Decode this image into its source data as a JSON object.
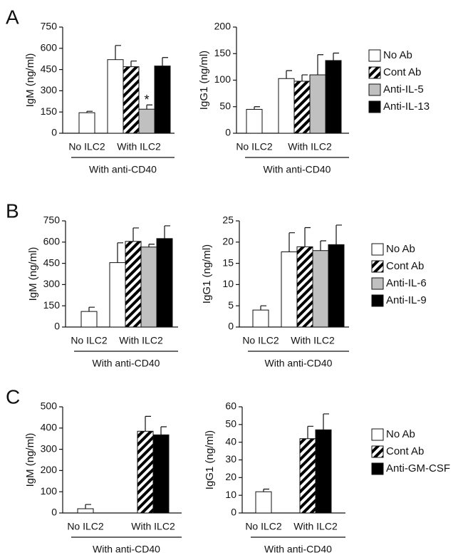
{
  "chart_data": [
    {
      "type": "bar",
      "panel": "A",
      "ylabel": "IgM (ng/ml)",
      "xlabel": "With anti-CD40",
      "categories": [
        "No ILC2",
        "With ILC2"
      ],
      "ylim": [
        0,
        750
      ],
      "yticks": [
        0,
        150,
        300,
        450,
        600,
        750
      ],
      "series": [
        {
          "color": "#ffffff",
          "values": [
            145,
            520
          ],
          "errors": [
            10,
            100
          ]
        },
        {
          "color": "#000000",
          "hatch": true,
          "values": [
            null,
            470
          ],
          "errors": [
            null,
            40
          ]
        },
        {
          "color": "#c0c0c0",
          "values": [
            null,
            170
          ],
          "errors": [
            null,
            30
          ],
          "annotations": [
            null,
            "*"
          ]
        },
        {
          "color": "#000000",
          "values": [
            null,
            475
          ],
          "errors": [
            null,
            60
          ]
        }
      ]
    },
    {
      "type": "bar",
      "ylabel": "IgG1 (ng/ml)",
      "xlabel": "With anti-CD40",
      "categories": [
        "No ILC2",
        "With ILC2"
      ],
      "ylim": [
        0,
        200
      ],
      "yticks": [
        0,
        50,
        100,
        150,
        200
      ],
      "series": [
        {
          "name": "No Ab",
          "color": "#ffffff",
          "values": [
            45,
            103
          ],
          "errors": [
            5,
            15
          ]
        },
        {
          "name": "Cont Ab",
          "color": "#000000",
          "hatch": true,
          "values": [
            null,
            98
          ],
          "errors": [
            null,
            12
          ]
        },
        {
          "name": "Anti-IL-5",
          "color": "#c0c0c0",
          "values": [
            null,
            110
          ],
          "errors": [
            null,
            38
          ]
        },
        {
          "name": "Anti-IL-13",
          "color": "#000000",
          "values": [
            null,
            137
          ],
          "errors": [
            null,
            14
          ]
        }
      ]
    },
    {
      "type": "bar",
      "panel": "B",
      "ylabel": "IgM (ng/ml)",
      "xlabel": "With anti-CD40",
      "categories": [
        "No ILC2",
        "With ILC2"
      ],
      "ylim": [
        0,
        750
      ],
      "yticks": [
        0,
        150,
        300,
        450,
        600,
        750
      ],
      "series": [
        {
          "color": "#ffffff",
          "values": [
            110,
            455
          ],
          "errors": [
            30,
            140
          ]
        },
        {
          "color": "#000000",
          "hatch": true,
          "values": [
            null,
            605
          ],
          "errors": [
            null,
            95
          ]
        },
        {
          "color": "#c0c0c0",
          "values": [
            null,
            565
          ],
          "errors": [
            null,
            20
          ]
        },
        {
          "color": "#000000",
          "values": [
            null,
            625
          ],
          "errors": [
            null,
            90
          ]
        }
      ]
    },
    {
      "type": "bar",
      "ylabel": "IgG1 (ng/ml)",
      "xlabel": "With anti-CD40",
      "categories": [
        "No ILC2",
        "With ILC2"
      ],
      "ylim": [
        0,
        25
      ],
      "yticks": [
        0,
        5,
        10,
        15,
        20,
        25
      ],
      "series": [
        {
          "name": "No Ab",
          "color": "#ffffff",
          "values": [
            4,
            17.7
          ],
          "errors": [
            1,
            4.5
          ]
        },
        {
          "name": "Cont Ab",
          "color": "#000000",
          "hatch": true,
          "values": [
            null,
            18.9
          ],
          "errors": [
            null,
            4.5
          ]
        },
        {
          "name": "Anti-IL-6",
          "color": "#c0c0c0",
          "values": [
            null,
            18
          ],
          "errors": [
            null,
            2.3
          ]
        },
        {
          "name": "Anti-IL-9",
          "color": "#000000",
          "values": [
            null,
            19.4
          ],
          "errors": [
            null,
            4.6
          ]
        }
      ]
    },
    {
      "type": "bar",
      "panel": "C",
      "ylabel": "IgM (ng/ml)",
      "xlabel": "With anti-CD40",
      "categories": [
        "No ILC2",
        "With ILC2"
      ],
      "ylim": [
        0,
        500
      ],
      "yticks": [
        0,
        100,
        200,
        300,
        400,
        500
      ],
      "series": [
        {
          "color": "#ffffff",
          "values": [
            20,
            null
          ],
          "errors": [
            20,
            null
          ]
        },
        {
          "color": "#000000",
          "hatch": true,
          "values": [
            null,
            385
          ],
          "errors": [
            null,
            70
          ]
        },
        {
          "color": "#000000",
          "values": [
            null,
            368
          ],
          "errors": [
            null,
            38
          ]
        }
      ]
    },
    {
      "type": "bar",
      "ylabel": "IgG1 (ng/ml)",
      "xlabel": "With anti-CD40",
      "categories": [
        "No ILC2",
        "With ILC2"
      ],
      "ylim": [
        0,
        60
      ],
      "yticks": [
        0,
        10,
        20,
        30,
        40,
        50,
        60
      ],
      "series": [
        {
          "name": "No Ab",
          "color": "#ffffff",
          "values": [
            12,
            null
          ],
          "errors": [
            1.5,
            null
          ]
        },
        {
          "name": "Cont Ab",
          "color": "#000000",
          "hatch": true,
          "values": [
            null,
            42
          ],
          "errors": [
            null,
            7
          ]
        },
        {
          "name": "Anti-GM-CSF",
          "color": "#000000",
          "values": [
            null,
            47
          ],
          "errors": [
            null,
            9
          ]
        }
      ]
    }
  ]
}
